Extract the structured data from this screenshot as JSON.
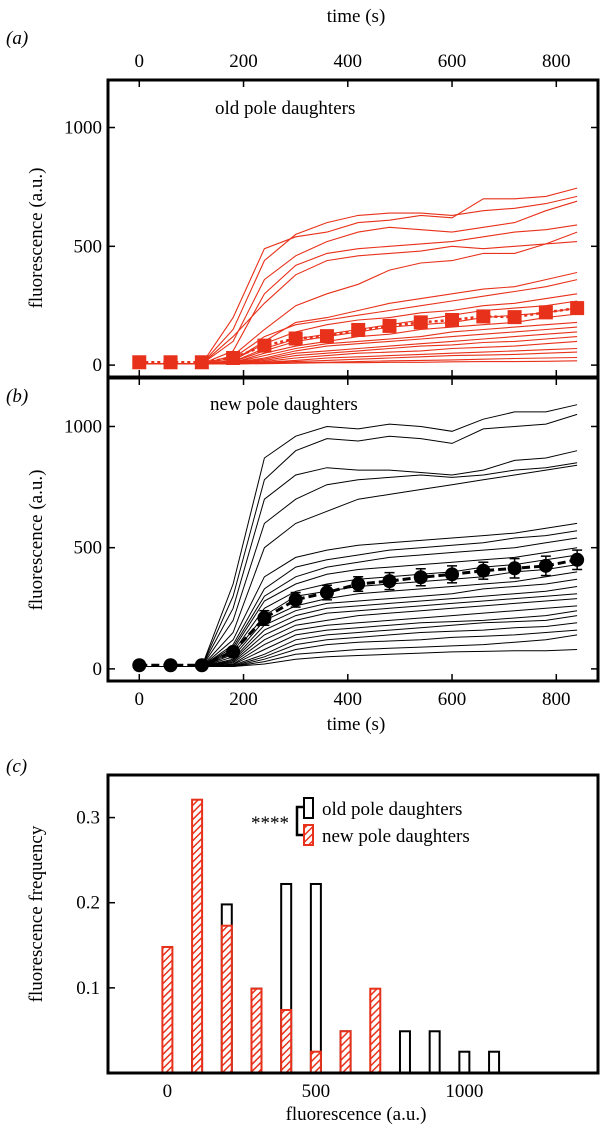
{
  "colors": {
    "old": "#e8311a",
    "new": "#000000"
  },
  "chart_data": [
    {
      "panel_label": "(a)",
      "type": "line",
      "annotation": "old pole daughters",
      "xlabel_top": "time (s)",
      "ylabel": "fluorescence (a.u.)",
      "xlim": [
        -60,
        880
      ],
      "ylim": [
        -50,
        1200
      ],
      "xticks": [
        "0",
        "200",
        "400",
        "600",
        "800"
      ],
      "yticks": [
        "0",
        "500",
        "1000"
      ],
      "x": [
        0,
        60,
        120,
        180,
        240,
        300,
        360,
        420,
        480,
        540,
        600,
        660,
        720,
        780,
        840
      ],
      "mean": [
        12,
        12,
        12,
        30,
        82,
        112,
        122,
        148,
        165,
        180,
        190,
        205,
        202,
        222,
        240
      ],
      "traces": [
        [
          5,
          5,
          5,
          200,
          490,
          540,
          560,
          600,
          610,
          630,
          620,
          700,
          700,
          710,
          745
        ],
        [
          5,
          5,
          5,
          150,
          440,
          550,
          600,
          630,
          640,
          640,
          630,
          650,
          660,
          680,
          710
        ],
        [
          5,
          5,
          5,
          100,
          360,
          460,
          520,
          560,
          580,
          570,
          560,
          580,
          600,
          650,
          690
        ],
        [
          5,
          5,
          5,
          60,
          300,
          420,
          470,
          490,
          500,
          510,
          520,
          540,
          560,
          570,
          590
        ],
        [
          5,
          5,
          5,
          40,
          150,
          250,
          300,
          340,
          400,
          430,
          440,
          470,
          470,
          510,
          560
        ],
        [
          5,
          5,
          5,
          120,
          260,
          380,
          440,
          460,
          470,
          480,
          500,
          490,
          500,
          510,
          520
        ],
        [
          5,
          5,
          5,
          20,
          100,
          180,
          200,
          230,
          260,
          280,
          300,
          320,
          330,
          360,
          390
        ],
        [
          5,
          5,
          5,
          30,
          120,
          170,
          190,
          210,
          230,
          250,
          270,
          290,
          310,
          330,
          360
        ],
        [
          5,
          5,
          5,
          20,
          90,
          140,
          170,
          190,
          200,
          220,
          230,
          250,
          260,
          280,
          300
        ],
        [
          5,
          5,
          5,
          15,
          70,
          110,
          130,
          150,
          170,
          190,
          210,
          230,
          240,
          250,
          270
        ],
        [
          5,
          5,
          5,
          15,
          60,
          100,
          120,
          140,
          160,
          170,
          180,
          200,
          210,
          220,
          240
        ],
        [
          5,
          5,
          5,
          10,
          50,
          80,
          100,
          120,
          130,
          150,
          160,
          170,
          180,
          200,
          215
        ],
        [
          5,
          5,
          5,
          10,
          40,
          70,
          90,
          100,
          110,
          120,
          140,
          150,
          160,
          170,
          180
        ],
        [
          5,
          5,
          5,
          10,
          30,
          60,
          80,
          90,
          100,
          110,
          120,
          130,
          140,
          150,
          160
        ],
        [
          5,
          5,
          5,
          8,
          25,
          50,
          60,
          70,
          80,
          90,
          100,
          110,
          120,
          130,
          140
        ],
        [
          5,
          5,
          5,
          8,
          20,
          40,
          50,
          60,
          70,
          80,
          85,
          95,
          100,
          110,
          120
        ],
        [
          5,
          5,
          5,
          8,
          15,
          30,
          40,
          50,
          55,
          60,
          70,
          75,
          80,
          90,
          100
        ],
        [
          5,
          5,
          5,
          6,
          12,
          20,
          30,
          35,
          40,
          45,
          50,
          55,
          60,
          65,
          70
        ],
        [
          5,
          5,
          5,
          6,
          10,
          15,
          20,
          25,
          30,
          35,
          40,
          42,
          45,
          50,
          55
        ],
        [
          5,
          5,
          5,
          5,
          8,
          10,
          12,
          15,
          18,
          20,
          22,
          25,
          28,
          30,
          32
        ],
        [
          5,
          5,
          5,
          5,
          6,
          8,
          10,
          10,
          12,
          12,
          14,
          15,
          15,
          16,
          18
        ]
      ]
    },
    {
      "panel_label": "(b)",
      "type": "line",
      "annotation": "new pole daughters",
      "xlabel": "time (s)",
      "ylabel": "fluorescence (a.u.)",
      "xlim": [
        -60,
        880
      ],
      "ylim": [
        -50,
        1200
      ],
      "xticks": [
        "0",
        "200",
        "400",
        "600",
        "800"
      ],
      "yticks": [
        "0",
        "500",
        "1000"
      ],
      "x": [
        0,
        60,
        120,
        180,
        240,
        300,
        360,
        420,
        480,
        540,
        600,
        660,
        720,
        780,
        840
      ],
      "mean": [
        15,
        15,
        15,
        70,
        210,
        285,
        315,
        350,
        362,
        378,
        390,
        405,
        415,
        425,
        450
      ],
      "error": [
        10,
        10,
        10,
        15,
        30,
        30,
        30,
        30,
        35,
        35,
        35,
        35,
        40,
        40,
        40
      ],
      "traces": [
        [
          10,
          10,
          10,
          350,
          870,
          960,
          1000,
          990,
          1010,
          1000,
          980,
          1030,
          1060,
          1060,
          1090
        ],
        [
          10,
          10,
          10,
          300,
          780,
          900,
          950,
          940,
          960,
          950,
          930,
          990,
          1000,
          1010,
          1050
        ],
        [
          10,
          10,
          10,
          250,
          700,
          800,
          830,
          820,
          820,
          810,
          800,
          820,
          860,
          870,
          900
        ],
        [
          10,
          10,
          10,
          200,
          600,
          700,
          760,
          780,
          790,
          800,
          790,
          800,
          820,
          830,
          850
        ],
        [
          10,
          10,
          10,
          150,
          500,
          600,
          650,
          700,
          720,
          740,
          760,
          780,
          800,
          820,
          840
        ],
        [
          10,
          10,
          10,
          120,
          380,
          460,
          490,
          510,
          520,
          530,
          540,
          550,
          560,
          580,
          600
        ],
        [
          10,
          10,
          10,
          100,
          330,
          420,
          450,
          470,
          490,
          500,
          510,
          520,
          540,
          550,
          570
        ],
        [
          10,
          10,
          10,
          90,
          300,
          380,
          420,
          440,
          460,
          470,
          480,
          490,
          500,
          520,
          540
        ],
        [
          10,
          10,
          10,
          80,
          280,
          350,
          390,
          410,
          420,
          430,
          440,
          450,
          460,
          480,
          500
        ],
        [
          10,
          10,
          10,
          70,
          250,
          320,
          350,
          370,
          380,
          390,
          400,
          420,
          430,
          450,
          470
        ],
        [
          10,
          10,
          10,
          60,
          220,
          300,
          320,
          340,
          350,
          360,
          370,
          380,
          400,
          410,
          430
        ],
        [
          10,
          10,
          10,
          50,
          200,
          260,
          290,
          310,
          320,
          330,
          340,
          350,
          360,
          380,
          400
        ],
        [
          10,
          10,
          10,
          40,
          180,
          240,
          270,
          280,
          290,
          300,
          310,
          330,
          340,
          350,
          370
        ],
        [
          10,
          10,
          10,
          35,
          160,
          220,
          250,
          260,
          270,
          280,
          290,
          300,
          310,
          320,
          340
        ],
        [
          10,
          10,
          10,
          30,
          140,
          200,
          230,
          240,
          250,
          260,
          270,
          280,
          290,
          300,
          310
        ],
        [
          10,
          10,
          10,
          25,
          120,
          180,
          200,
          220,
          230,
          240,
          250,
          260,
          270,
          280,
          290
        ],
        [
          10,
          10,
          10,
          20,
          100,
          160,
          180,
          190,
          200,
          210,
          220,
          230,
          240,
          250,
          260
        ],
        [
          10,
          10,
          10,
          18,
          80,
          140,
          160,
          170,
          180,
          190,
          195,
          200,
          210,
          220,
          240
        ],
        [
          10,
          10,
          10,
          15,
          60,
          120,
          140,
          150,
          160,
          170,
          180,
          190,
          195,
          200,
          220
        ],
        [
          10,
          10,
          10,
          12,
          50,
          100,
          120,
          130,
          140,
          150,
          155,
          160,
          170,
          175,
          190
        ],
        [
          10,
          10,
          10,
          10,
          40,
          80,
          100,
          110,
          115,
          120,
          130,
          135,
          140,
          150,
          160
        ],
        [
          10,
          10,
          10,
          10,
          30,
          60,
          70,
          80,
          85,
          90,
          95,
          100,
          110,
          120,
          140
        ],
        [
          10,
          10,
          10,
          10,
          20,
          40,
          50,
          55,
          60,
          65,
          70,
          72,
          75,
          75,
          80
        ]
      ]
    },
    {
      "panel_label": "(c)",
      "type": "bar",
      "xlabel": "fluorescence (a.u.)",
      "ylabel": "fluorescence frequency",
      "xlim": [
        -200,
        1450
      ],
      "ylim": [
        0,
        0.35
      ],
      "xticks": [
        "0",
        "500",
        "1000"
      ],
      "yticks": [
        "0.1",
        "0.2",
        "0.3"
      ],
      "bins": [
        0,
        100,
        200,
        300,
        400,
        500,
        600,
        700,
        800,
        900,
        1000,
        1100
      ],
      "significance": "****",
      "series": [
        {
          "name": "old pole daughters",
          "values": [
            0,
            0.049,
            0.198,
            0.099,
            0.222,
            0.222,
            0.049,
            0,
            0.049,
            0.049,
            0.025,
            0.025
          ]
        },
        {
          "name": "new pole daughters",
          "values": [
            0.148,
            0.321,
            0.173,
            0.099,
            0.074,
            0.025,
            0.049,
            0.099,
            0,
            0,
            0,
            0
          ]
        }
      ]
    }
  ]
}
